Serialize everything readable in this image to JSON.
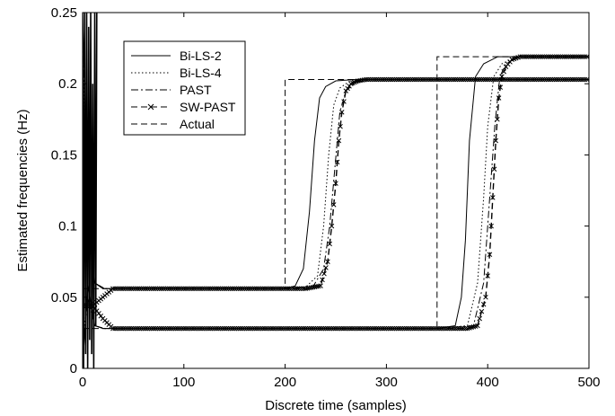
{
  "chart_data": {
    "type": "line",
    "title": "",
    "xlabel": "Discrete time (samples)",
    "ylabel": "Estimated frequencies (Hz)",
    "xlim": [
      0,
      500
    ],
    "ylim": [
      0,
      0.25
    ],
    "xticks": [
      0,
      100,
      200,
      300,
      400,
      500
    ],
    "xtick_labels": [
      "0",
      "100",
      "200",
      "300",
      "400",
      "500"
    ],
    "yticks": [
      0,
      0.05,
      0.1,
      0.15,
      0.2,
      0.25
    ],
    "ytick_labels": [
      "0",
      "0.05",
      "0.1",
      "0.15",
      "0.2",
      "0.25"
    ],
    "grid": false,
    "legend_position": "top-left",
    "series": [
      {
        "name": "Actual",
        "style": "dashed",
        "components": [
          {
            "x": [
              0,
              200,
              200,
              500
            ],
            "y": [
              0.056,
              0.056,
              0.203,
              0.203
            ]
          },
          {
            "x": [
              0,
              350,
              350,
              500
            ],
            "y": [
              0.028,
              0.028,
              0.219,
              0.219
            ]
          }
        ]
      },
      {
        "name": "Bi-LS-2",
        "style": "solid",
        "components": [
          {
            "x": [
              0,
              5,
              12,
              20,
              40,
              200,
              210,
              218,
              224,
              229,
              234,
              240,
              250,
              270,
              500
            ],
            "y": [
              0.25,
              0.12,
              0.06,
              0.056,
              0.056,
              0.056,
              0.058,
              0.07,
              0.11,
              0.16,
              0.19,
              0.198,
              0.202,
              0.203,
              0.203
            ]
          },
          {
            "x": [
              0,
              5,
              12,
              20,
              40,
              350,
              368,
              374,
              378,
              382,
              388,
              396,
              410,
              500
            ],
            "y": [
              0.0,
              0.06,
              0.03,
              0.028,
              0.028,
              0.028,
              0.03,
              0.05,
              0.09,
              0.16,
              0.205,
              0.214,
              0.219,
              0.219
            ]
          }
        ]
      },
      {
        "name": "Bi-LS-4",
        "style": "dotted",
        "components": [
          {
            "x": [
              0,
              5,
              12,
              22,
              40,
              200,
              220,
              232,
              238,
              243,
              248,
              254,
              264,
              280,
              500
            ],
            "y": [
              0.22,
              0.1,
              0.06,
              0.056,
              0.056,
              0.056,
              0.057,
              0.065,
              0.1,
              0.15,
              0.185,
              0.197,
              0.202,
              0.203,
              0.203
            ]
          },
          {
            "x": [
              0,
              5,
              12,
              22,
              40,
              350,
              380,
              390,
              396,
              400,
              406,
              414,
              428,
              500
            ],
            "y": [
              0.02,
              0.05,
              0.03,
              0.028,
              0.028,
              0.028,
              0.03,
              0.06,
              0.12,
              0.17,
              0.205,
              0.214,
              0.219,
              0.219
            ]
          }
        ]
      },
      {
        "name": "PAST",
        "style": "dashdot",
        "components": [
          {
            "x": [
              0,
              5,
              12,
              22,
              40,
              200,
              228,
              238,
              244,
              249,
              254,
              260,
              270,
              285,
              500
            ],
            "y": [
              0.24,
              0.11,
              0.06,
              0.056,
              0.056,
              0.056,
              0.058,
              0.07,
              0.1,
              0.14,
              0.18,
              0.195,
              0.201,
              0.203,
              0.203
            ]
          },
          {
            "x": [
              0,
              5,
              12,
              22,
              40,
              350,
              386,
              396,
              402,
              407,
              412,
              418,
              430,
              500
            ],
            "y": [
              0.01,
              0.05,
              0.03,
              0.028,
              0.028,
              0.028,
              0.03,
              0.06,
              0.12,
              0.17,
              0.205,
              0.214,
              0.219,
              0.219
            ]
          }
        ]
      },
      {
        "name": "SW-PAST",
        "style": "dashed-x",
        "components": [
          {
            "x": [
              0,
              10,
              20,
              30,
              40,
              60,
              80,
              100,
              120,
              140,
              160,
              180,
              200,
              220,
              235,
              242,
              246,
              250,
              253,
              256,
              260,
              265,
              272,
              280,
              300,
              320,
              340,
              360,
              380,
              400,
              420,
              440,
              460,
              480,
              500
            ],
            "y": [
              0.044,
              0.044,
              0.05,
              0.056,
              0.056,
              0.056,
              0.056,
              0.056,
              0.056,
              0.056,
              0.056,
              0.056,
              0.056,
              0.056,
              0.058,
              0.075,
              0.1,
              0.13,
              0.16,
              0.18,
              0.195,
              0.2,
              0.202,
              0.203,
              0.203,
              0.203,
              0.203,
              0.203,
              0.203,
              0.203,
              0.203,
              0.203,
              0.203,
              0.203,
              0.203
            ]
          },
          {
            "x": [
              0,
              10,
              20,
              30,
              40,
              60,
              80,
              100,
              120,
              140,
              160,
              180,
              200,
              220,
              240,
              260,
              280,
              300,
              320,
              340,
              360,
              380,
              390,
              398,
              402,
              405,
              408,
              411,
              414,
              418,
              424,
              432,
              440,
              460,
              480,
              500
            ],
            "y": [
              0.044,
              0.044,
              0.035,
              0.028,
              0.028,
              0.028,
              0.028,
              0.028,
              0.028,
              0.028,
              0.028,
              0.028,
              0.028,
              0.028,
              0.028,
              0.028,
              0.028,
              0.028,
              0.028,
              0.028,
              0.028,
              0.028,
              0.03,
              0.05,
              0.08,
              0.12,
              0.16,
              0.19,
              0.205,
              0.212,
              0.217,
              0.219,
              0.219,
              0.219,
              0.219,
              0.219
            ]
          }
        ]
      }
    ],
    "startup_oscillation": {
      "x": [
        0,
        1,
        2,
        3,
        4,
        5,
        6,
        7,
        8,
        9,
        10,
        11,
        12,
        13,
        14
      ],
      "y": [
        0.25,
        0.0,
        0.25,
        0.01,
        0.25,
        0.0,
        0.24,
        0.02,
        0.25,
        0.01,
        0.2,
        0.0,
        0.25,
        0.03,
        0.25
      ]
    }
  }
}
